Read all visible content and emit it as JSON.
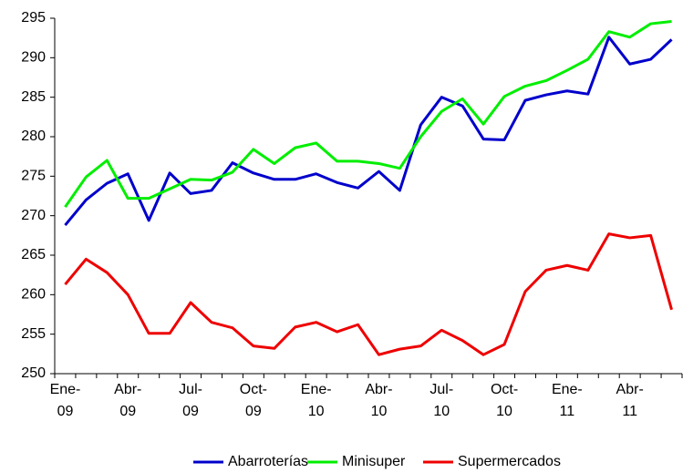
{
  "chart_data": {
    "type": "line",
    "categories": [
      "Ene-09",
      null,
      null,
      "Abr-09",
      null,
      null,
      "Jul-09",
      null,
      null,
      "Oct-09",
      null,
      null,
      "Ene-10",
      null,
      null,
      "Abr-10",
      null,
      null,
      "Jul-10",
      null,
      null,
      "Oct-10",
      null,
      null,
      "Ene-11",
      null,
      null,
      "Abr-11",
      null,
      null
    ],
    "series": [
      {
        "name": "Abarroterías",
        "color": "#0000cc",
        "values": [
          268.8,
          272.0,
          274.1,
          275.3,
          269.4,
          275.4,
          272.8,
          273.2,
          276.7,
          275.4,
          274.6,
          274.6,
          275.3,
          274.2,
          273.5,
          275.6,
          273.2,
          281.5,
          285.0,
          283.9,
          279.7,
          279.6,
          284.6,
          285.3,
          285.8,
          285.4,
          292.6,
          289.2,
          289.8,
          292.3
        ]
      },
      {
        "name": "Minisuper",
        "color": "#00ee00",
        "values": [
          271.1,
          274.9,
          277.0,
          272.2,
          272.2,
          273.4,
          274.6,
          274.5,
          275.5,
          278.4,
          276.6,
          278.6,
          279.2,
          276.9,
          276.9,
          276.6,
          276.0,
          280.0,
          283.2,
          284.8,
          281.6,
          285.1,
          286.4,
          287.1,
          288.4,
          289.8,
          293.3,
          292.6,
          294.3,
          294.6
        ]
      },
      {
        "name": "Supermercados",
        "color": "#ee0000",
        "values": [
          261.3,
          264.5,
          262.8,
          260.0,
          255.1,
          255.1,
          259.0,
          256.5,
          255.8,
          253.5,
          253.2,
          255.9,
          256.5,
          255.3,
          256.2,
          252.4,
          253.1,
          253.5,
          255.5,
          254.2,
          252.4,
          253.7,
          260.4,
          263.1,
          263.7,
          263.1,
          267.7,
          267.2,
          267.5,
          258.1
        ]
      }
    ],
    "ylim": [
      250,
      295
    ],
    "yticks": [
      250,
      255,
      260,
      265,
      270,
      275,
      280,
      285,
      290,
      295
    ],
    "grid": false,
    "legend": "bottom"
  }
}
